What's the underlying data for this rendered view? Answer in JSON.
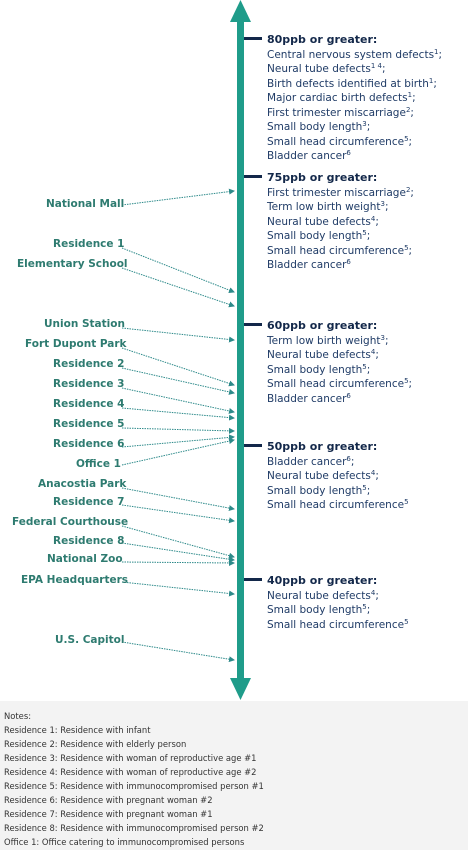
{
  "colors": {
    "axis": "#1f9c8a",
    "label": "#2e7b70",
    "level_text": "#1f3b66",
    "pointer": "#2d8a8a",
    "notes_bg": "#f3f3f3"
  },
  "locations": [
    {
      "label": "National Mall"
    },
    {
      "label": "Residence 1"
    },
    {
      "label": "Elementary School"
    },
    {
      "label": "Union Station"
    },
    {
      "label": "Fort Dupont Park"
    },
    {
      "label": "Residence 2"
    },
    {
      "label": "Residence 3"
    },
    {
      "label": "Residence 4"
    },
    {
      "label": "Residence 5"
    },
    {
      "label": "Residence 6"
    },
    {
      "label": "Office 1"
    },
    {
      "label": "Anacostia Park"
    },
    {
      "label": "Residence 7"
    },
    {
      "label": "Federal Courthouse"
    },
    {
      "label": "Residence 8"
    },
    {
      "label": "National Zoo"
    },
    {
      "label": "EPA Headquarters"
    },
    {
      "label": "U.S. Capitol"
    }
  ],
  "levels": [
    {
      "heading": "80ppb or greater:",
      "effects": [
        {
          "text": "Central nervous system defects",
          "sup": "1",
          "end": ";"
        },
        {
          "text": "Neural tube defects",
          "sup": "1 4",
          "end": ";"
        },
        {
          "text": "Birth defects identified at birth",
          "sup": "1",
          "end": ";"
        },
        {
          "text": "Major cardiac birth defects",
          "sup": "1",
          "end": ";"
        },
        {
          "text": "First trimester miscarriage",
          "sup": "2",
          "end": ";"
        },
        {
          "text": "Small body length",
          "sup": "3",
          "end": ";"
        },
        {
          "text": "Small head circumference",
          "sup": "5",
          "end": ";"
        },
        {
          "text": "Bladder cancer",
          "sup": "6",
          "end": ""
        }
      ]
    },
    {
      "heading": "75ppb or greater:",
      "effects": [
        {
          "text": "First trimester miscarriage",
          "sup": "2",
          "end": ";"
        },
        {
          "text": "Term low birth weight",
          "sup": "3",
          "end": ";"
        },
        {
          "text": "Neural tube defects",
          "sup": "4",
          "end": ";"
        },
        {
          "text": "Small body length",
          "sup": "5",
          "end": ";"
        },
        {
          "text": "Small head circumference",
          "sup": "5",
          "end": ";"
        },
        {
          "text": "Bladder cancer",
          "sup": "6",
          "end": ""
        }
      ]
    },
    {
      "heading": "60ppb or greater:",
      "effects": [
        {
          "text": "Term low birth weight",
          "sup": "3",
          "end": ";"
        },
        {
          "text": "Neural tube defects",
          "sup": "4",
          "end": ";"
        },
        {
          "text": "Small body length",
          "sup": "5",
          "end": ";"
        },
        {
          "text": "Small head circumference",
          "sup": "5",
          "end": ";"
        },
        {
          "text": "Bladder cancer",
          "sup": "6",
          "end": ""
        }
      ]
    },
    {
      "heading": "50ppb or greater:",
      "effects": [
        {
          "text": "Bladder cancer",
          "sup": "6",
          "end": ";"
        },
        {
          "text": "Neural tube defects",
          "sup": "4",
          "end": ";"
        },
        {
          "text": "Small body length",
          "sup": "5",
          "end": ";"
        },
        {
          "text": "Small head circumference",
          "sup": "5",
          "end": ""
        }
      ]
    },
    {
      "heading": "40ppb or greater:",
      "effects": [
        {
          "text": "Neural tube defects",
          "sup": "4",
          "end": ";"
        },
        {
          "text": "Small body length",
          "sup": "5",
          "end": ";"
        },
        {
          "text": "Small head circumference",
          "sup": "5",
          "end": ""
        }
      ]
    }
  ],
  "notes": {
    "title": "Notes:",
    "items": [
      "Residence 1: Residence with infant",
      "Residence 2: Residence with elderly person",
      "Residence 3: Residence with woman of reproductive age #1",
      "Residence 4: Residence with woman of reproductive age #2",
      "Residence 5: Residence with immunocompromised person #1",
      "Residence 6: Residence with pregnant woman  #2",
      "Residence 7: Residence with pregnant woman  #1",
      "Residence 8: Residence with immunocompromised person #2",
      "Office 1: Office catering to immunocompromised persons"
    ]
  }
}
